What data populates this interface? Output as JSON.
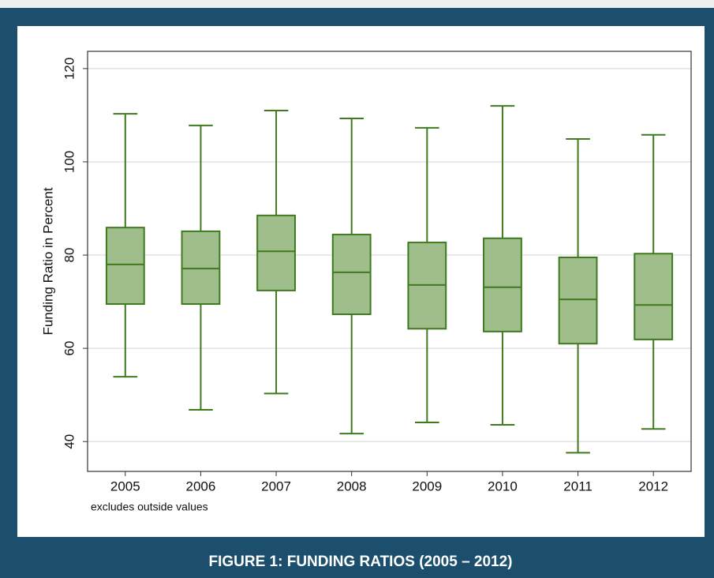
{
  "caption": "FIGURE 1: FUNDING RATIOS (2005 – 2012)",
  "chart_data": {
    "type": "box",
    "y_label": "Funding Ratio in Percent",
    "note": "excludes outside values",
    "categories": [
      "2005",
      "2006",
      "2007",
      "2008",
      "2009",
      "2010",
      "2011",
      "2012"
    ],
    "high": [
      110.3,
      107.8,
      111.0,
      109.3,
      107.3,
      112.0,
      104.9,
      105.8
    ],
    "q3": [
      85.9,
      85.1,
      88.5,
      84.4,
      82.7,
      83.6,
      79.5,
      80.3
    ],
    "median": [
      78.0,
      77.1,
      80.8,
      76.3,
      73.6,
      73.1,
      70.5,
      69.3
    ],
    "q1": [
      69.5,
      69.5,
      72.4,
      67.3,
      64.2,
      63.6,
      61.0,
      61.9
    ],
    "low": [
      53.9,
      46.8,
      50.3,
      41.7,
      44.1,
      43.6,
      37.6,
      42.7
    ],
    "color": "#3f7a1e",
    "fill": "#a0bd8c",
    "ylim": [
      33.6,
      123.7
    ],
    "yticks": [
      40,
      60,
      80,
      100,
      120
    ],
    "grid": true
  }
}
